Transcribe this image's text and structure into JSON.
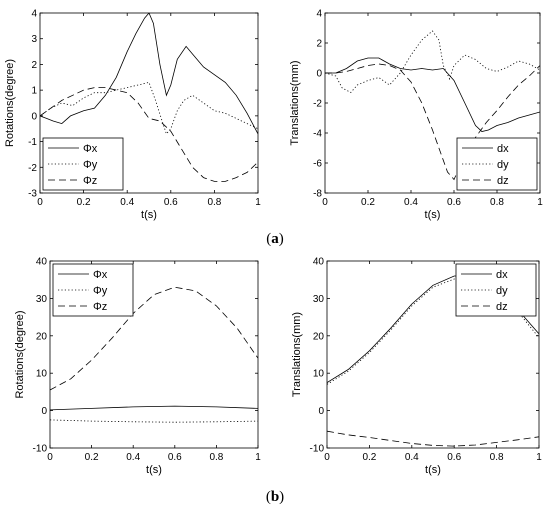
{
  "captions": [
    {
      "open": "(",
      "letter": "a",
      "close": ")"
    },
    {
      "open": "(",
      "letter": "b",
      "close": ")"
    }
  ],
  "chart_data": [
    {
      "id": "a-rot",
      "type": "line",
      "xlabel": "t(s)",
      "ylabel": "Rotations(degree)",
      "xlim": [
        0,
        1
      ],
      "ylim": [
        -3,
        4
      ],
      "xticks": [
        0,
        0.2,
        0.4,
        0.6,
        0.8,
        1
      ],
      "xtick_labels": [
        "0",
        "0.2",
        "0.4",
        "0.6",
        "0.8",
        "1"
      ],
      "yticks": [
        -3,
        -2,
        -1,
        0,
        1,
        2,
        3,
        4
      ],
      "ytick_labels": [
        "-3",
        "-2",
        "-1",
        "0",
        "1",
        "2",
        "3",
        "4"
      ],
      "legend_position": "bottom-left",
      "series": [
        {
          "name": "Φx",
          "style": "solid",
          "x": [
            0,
            0.03,
            0.06,
            0.1,
            0.14,
            0.2,
            0.25,
            0.3,
            0.35,
            0.4,
            0.44,
            0.48,
            0.5,
            0.52,
            0.55,
            0.58,
            0.6,
            0.63,
            0.67,
            0.7,
            0.75,
            0.8,
            0.85,
            0.9,
            0.95,
            1
          ],
          "y": [
            0,
            -0.1,
            -0.2,
            -0.3,
            0,
            0.2,
            0.3,
            0.8,
            1.5,
            2.5,
            3.2,
            3.8,
            4,
            3.6,
            2,
            0.8,
            1.2,
            2.2,
            2.7,
            2.4,
            1.9,
            1.6,
            1.3,
            0.8,
            0.1,
            -0.7
          ]
        },
        {
          "name": "Φy",
          "style": "dotted",
          "x": [
            0,
            0.05,
            0.1,
            0.15,
            0.2,
            0.25,
            0.3,
            0.35,
            0.4,
            0.45,
            0.5,
            0.53,
            0.56,
            0.58,
            0.6,
            0.63,
            0.66,
            0.7,
            0.75,
            0.8,
            0.85,
            0.9,
            0.95,
            1
          ],
          "y": [
            0,
            0.3,
            0.5,
            0.4,
            0.7,
            0.9,
            0.9,
            1,
            1.1,
            1.2,
            1.3,
            0.6,
            -0.2,
            -0.7,
            -0.5,
            0.2,
            0.6,
            0.8,
            0.5,
            0.2,
            0.1,
            -0.1,
            -0.3,
            -0.5
          ]
        },
        {
          "name": "Φz",
          "style": "dashed",
          "x": [
            0,
            0.05,
            0.1,
            0.15,
            0.2,
            0.25,
            0.3,
            0.35,
            0.4,
            0.45,
            0.5,
            0.55,
            0.6,
            0.65,
            0.7,
            0.75,
            0.8,
            0.85,
            0.9,
            0.95,
            1
          ],
          "y": [
            0,
            0.3,
            0.6,
            0.8,
            1,
            1.1,
            1.1,
            1,
            0.9,
            0.5,
            -0.1,
            -0.2,
            -0.6,
            -1.3,
            -2,
            -2.4,
            -2.55,
            -2.55,
            -2.4,
            -2.2,
            -1.8
          ]
        }
      ]
    },
    {
      "id": "a-trans",
      "type": "line",
      "xlabel": "t(s)",
      "ylabel": "Translations(mm)",
      "xlim": [
        0,
        1
      ],
      "ylim": [
        -8,
        4
      ],
      "xticks": [
        0,
        0.2,
        0.4,
        0.6,
        0.8,
        1
      ],
      "xtick_labels": [
        "0",
        "0.2",
        "0.4",
        "0.6",
        "0.8",
        "1"
      ],
      "yticks": [
        -8,
        -6,
        -4,
        -2,
        0,
        2,
        4
      ],
      "ytick_labels": [
        "-8",
        "-6",
        "-4",
        "-2",
        "0",
        "2",
        "4"
      ],
      "legend_position": "bottom-right",
      "series": [
        {
          "name": "dx",
          "style": "solid",
          "x": [
            0,
            0.05,
            0.1,
            0.15,
            0.2,
            0.25,
            0.3,
            0.35,
            0.4,
            0.45,
            0.5,
            0.55,
            0.6,
            0.65,
            0.7,
            0.73,
            0.76,
            0.8,
            0.85,
            0.9,
            0.95,
            1
          ],
          "y": [
            0,
            0,
            0.3,
            0.8,
            1,
            1,
            0.6,
            0.3,
            0.2,
            0.3,
            0.2,
            0.3,
            -0.5,
            -2,
            -3.5,
            -3.9,
            -3.8,
            -3.5,
            -3.3,
            -3,
            -2.8,
            -2.6
          ]
        },
        {
          "name": "dy",
          "style": "dotted",
          "x": [
            0,
            0.05,
            0.08,
            0.12,
            0.15,
            0.2,
            0.25,
            0.3,
            0.35,
            0.4,
            0.45,
            0.5,
            0.53,
            0.55,
            0.58,
            0.6,
            0.65,
            0.7,
            0.75,
            0.8,
            0.85,
            0.9,
            0.95,
            1
          ],
          "y": [
            0,
            -0.2,
            -1,
            -1.3,
            -0.8,
            -0.5,
            -0.3,
            -0.8,
            0,
            1.2,
            2.2,
            2.8,
            2.2,
            0.5,
            -0.4,
            0.5,
            1.2,
            0.9,
            0.3,
            0.1,
            0.4,
            0.8,
            0.6,
            0.2
          ]
        },
        {
          "name": "dz",
          "style": "dashed",
          "x": [
            0,
            0.05,
            0.1,
            0.15,
            0.2,
            0.25,
            0.3,
            0.35,
            0.4,
            0.45,
            0.5,
            0.53,
            0.57,
            0.6,
            0.65,
            0.7,
            0.75,
            0.8,
            0.85,
            0.9,
            0.95,
            1
          ],
          "y": [
            0,
            0,
            0.1,
            0.3,
            0.5,
            0.6,
            0.5,
            0.2,
            -0.6,
            -2,
            -3.8,
            -5,
            -6.6,
            -7.1,
            -5.5,
            -4.3,
            -3.3,
            -2.5,
            -1.6,
            -0.8,
            -0.2,
            0.5
          ]
        }
      ]
    },
    {
      "id": "b-rot",
      "type": "line",
      "xlabel": "t(s)",
      "ylabel": "Rotations(degree)",
      "xlim": [
        0,
        1
      ],
      "ylim": [
        -10,
        40
      ],
      "xticks": [
        0,
        0.2,
        0.4,
        0.6,
        0.8,
        1
      ],
      "xtick_labels": [
        "0",
        "0.2",
        "0.4",
        "0.6",
        "0.8",
        "1"
      ],
      "yticks": [
        -10,
        0,
        10,
        20,
        30,
        40
      ],
      "ytick_labels": [
        "-10",
        "0",
        "10",
        "20",
        "30",
        "40"
      ],
      "legend_position": "top-left",
      "series": [
        {
          "name": "Φx",
          "style": "solid",
          "x": [
            0,
            0.2,
            0.4,
            0.6,
            0.8,
            1
          ],
          "y": [
            0.2,
            0.6,
            1,
            1.2,
            1,
            0.6
          ]
        },
        {
          "name": "Φy",
          "style": "dotted",
          "x": [
            0,
            0.2,
            0.4,
            0.6,
            0.8,
            1
          ],
          "y": [
            -2.5,
            -2.8,
            -3,
            -3.1,
            -3,
            -2.8
          ]
        },
        {
          "name": "Φz",
          "style": "dashed",
          "x": [
            0,
            0.1,
            0.2,
            0.3,
            0.4,
            0.5,
            0.6,
            0.7,
            0.8,
            0.9,
            1
          ],
          "y": [
            5.5,
            8.5,
            13.5,
            19.5,
            26,
            31,
            33,
            32,
            28,
            22,
            14
          ]
        }
      ]
    },
    {
      "id": "b-trans",
      "type": "line",
      "xlabel": "t(s)",
      "ylabel": "Translations(mm)",
      "xlim": [
        0,
        1
      ],
      "ylim": [
        -10,
        40
      ],
      "xticks": [
        0,
        0.2,
        0.4,
        0.6,
        0.8,
        1
      ],
      "xtick_labels": [
        "0",
        "0.2",
        "0.4",
        "0.6",
        "0.8",
        "1"
      ],
      "yticks": [
        -10,
        0,
        10,
        20,
        30,
        40
      ],
      "ytick_labels": [
        "-10",
        "0",
        "10",
        "20",
        "30",
        "40"
      ],
      "legend_position": "top-right",
      "series": [
        {
          "name": "dx",
          "style": "solid",
          "x": [
            0,
            0.1,
            0.2,
            0.3,
            0.4,
            0.5,
            0.6,
            0.65,
            0.7,
            0.8,
            0.9,
            1
          ],
          "y": [
            7.5,
            11,
            16,
            22,
            28.5,
            33.5,
            36,
            36,
            35.5,
            32.5,
            27,
            20.5
          ]
        },
        {
          "name": "dy",
          "style": "dotted",
          "x": [
            0,
            0.1,
            0.2,
            0.3,
            0.4,
            0.5,
            0.6,
            0.65,
            0.7,
            0.8,
            0.9,
            1
          ],
          "y": [
            7,
            10.5,
            15.5,
            21.5,
            28,
            33,
            35.2,
            35.2,
            34.8,
            32,
            26.5,
            19.5
          ]
        },
        {
          "name": "dz",
          "style": "dashed",
          "x": [
            0,
            0.1,
            0.2,
            0.3,
            0.4,
            0.5,
            0.6,
            0.7,
            0.8,
            0.9,
            1
          ],
          "y": [
            -5.5,
            -6.5,
            -7.2,
            -8,
            -8.8,
            -9.3,
            -9.5,
            -9.2,
            -8.5,
            -7.8,
            -7
          ]
        }
      ]
    }
  ]
}
